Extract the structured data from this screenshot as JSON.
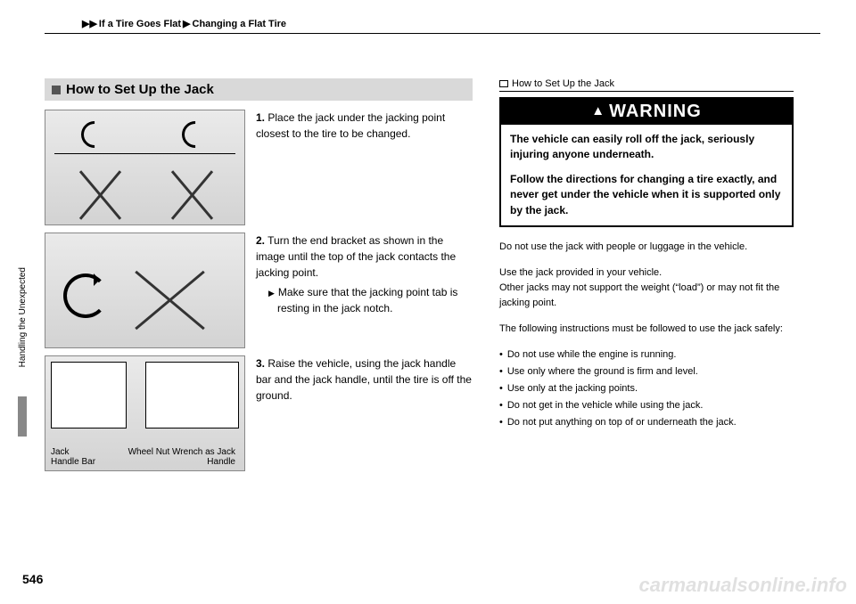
{
  "breadcrumb": {
    "a": "If a Tire Goes Flat",
    "b": "Changing a Flat Tire"
  },
  "side_tab": "Handling the Unexpected",
  "page_number": "546",
  "section_title": "How to Set Up the Jack",
  "steps": {
    "s1": {
      "num": "1.",
      "text": "Place the jack under the jacking point closest to the tire to be changed."
    },
    "s2": {
      "num": "2.",
      "text": "Turn the end bracket as shown in the image until the top of the jack contacts the jacking point.",
      "sub": "Make sure that the jacking point tab is resting in the jack notch."
    },
    "s3": {
      "num": "3.",
      "text": "Raise the vehicle, using the jack handle bar and the jack handle, until the tire is off the ground."
    }
  },
  "diagram3_labels": {
    "jack_handle_bar": "Jack Handle Bar",
    "wrench": "Wheel Nut Wrench as Jack Handle"
  },
  "right": {
    "header": "How to Set Up the Jack",
    "warning_title": "WARNING",
    "warning_p1": "The vehicle can easily roll off the jack, seriously injuring anyone underneath.",
    "warning_p2": "Follow the directions for changing a tire exactly, and never get under the vehicle when it is supported only by the jack.",
    "note1": "Do not use the jack with people or luggage in the vehicle.",
    "note2": "Use the jack provided in your vehicle.\nOther jacks may not support the weight (“load”) or may not fit the jacking point.",
    "note3_intro": "The following instructions must be followed to use the jack safely:",
    "bullets": {
      "b1": "Do not use while the engine is running.",
      "b2": "Use only where the ground is firm and level.",
      "b3": "Use only at the jacking points.",
      "b4": "Do not get in the vehicle while using the jack.",
      "b5": "Do not put anything on top of or underneath the jack."
    }
  },
  "watermark": "carmanualsonline.info"
}
